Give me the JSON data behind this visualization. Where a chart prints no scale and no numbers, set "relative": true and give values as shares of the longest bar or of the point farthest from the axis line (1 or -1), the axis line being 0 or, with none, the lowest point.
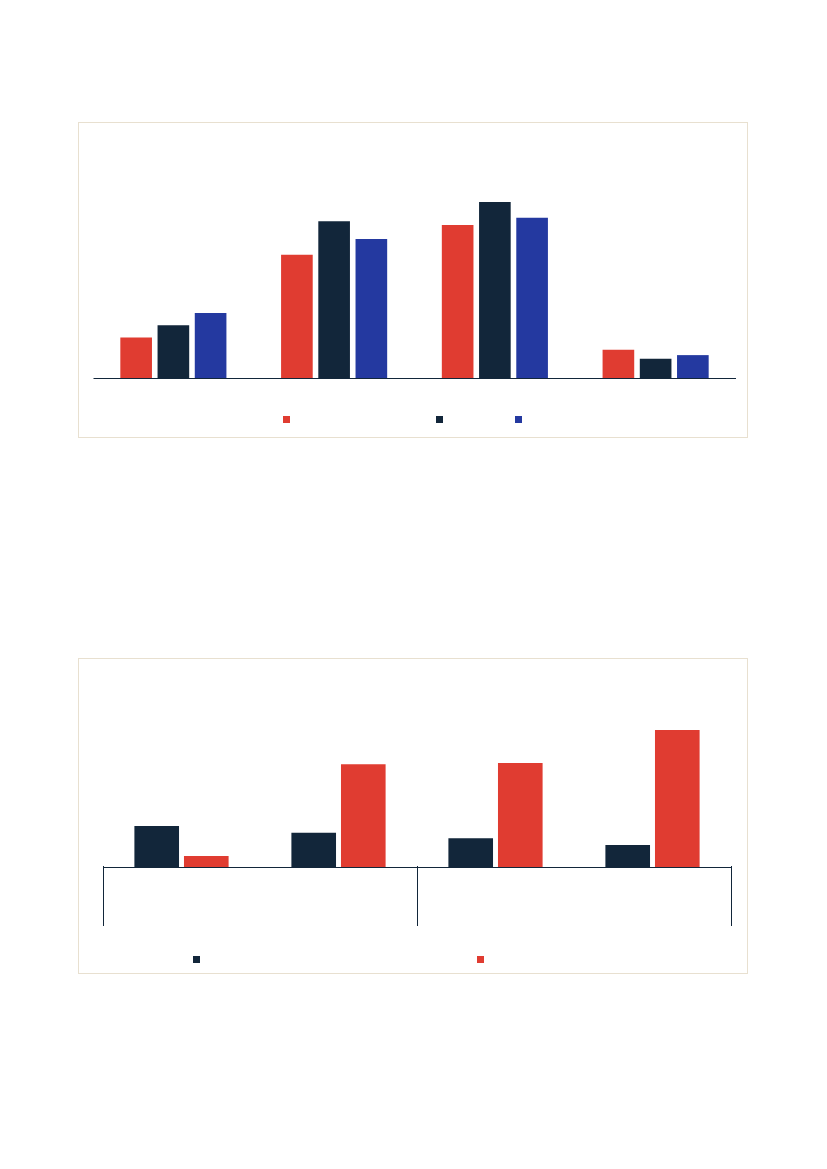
{
  "chart_data": [
    {
      "type": "bar",
      "categories": [
        null,
        null,
        null,
        null
      ],
      "relative": true,
      "series": [
        {
          "color": "#e03c31",
          "values": [
            0.23,
            0.7,
            0.87,
            0.16
          ]
        },
        {
          "color": "#12263a",
          "values": [
            0.3,
            0.89,
            1,
            0.11
          ]
        },
        {
          "color": "#2439a0",
          "values": [
            0.37,
            0.79,
            0.91,
            0.13
          ]
        }
      ]
    },
    {
      "type": "bar",
      "categories": [
        null,
        null,
        null,
        null
      ],
      "relative": true,
      "series": [
        {
          "color": "#12263a",
          "values": [
            0.3,
            0.25,
            0.21,
            0.16
          ]
        },
        {
          "color": "#e03c31",
          "values": [
            0.08,
            0.75,
            0.76,
            1
          ]
        }
      ]
    }
  ]
}
